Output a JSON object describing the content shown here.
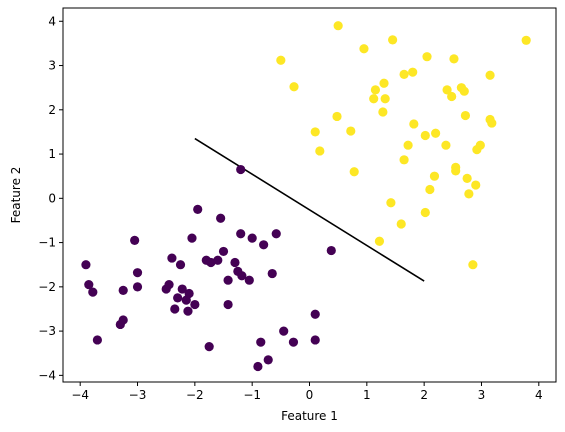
{
  "chart_data": {
    "type": "scatter",
    "xlabel": "Feature 1",
    "ylabel": "Feature 2",
    "xlim": [
      -4.3,
      4.3
    ],
    "ylim": [
      -4.15,
      4.3
    ],
    "x_ticks": [
      -4,
      -3,
      -2,
      -1,
      0,
      1,
      2,
      3,
      4
    ],
    "y_ticks": [
      -4,
      -3,
      -2,
      -1,
      0,
      1,
      2,
      3,
      4
    ],
    "grid": false,
    "colors": {
      "class_0": "#440154",
      "class_1": "#fde725",
      "boundary": "#000000"
    },
    "series": [
      {
        "color": "#440154",
        "points": [
          [
            -1.2,
            0.65
          ],
          [
            -3.9,
            -1.5
          ],
          [
            -3.85,
            -1.95
          ],
          [
            -3.78,
            -2.12
          ],
          [
            -3.7,
            -3.2
          ],
          [
            -3.3,
            -2.85
          ],
          [
            -3.25,
            -2.75
          ],
          [
            -3.25,
            -2.08
          ],
          [
            -3.05,
            -0.95
          ],
          [
            -3.0,
            -1.68
          ],
          [
            -3.0,
            -2.0
          ],
          [
            -2.5,
            -2.05
          ],
          [
            -2.45,
            -1.95
          ],
          [
            -2.4,
            -1.35
          ],
          [
            -2.35,
            -2.5
          ],
          [
            -2.3,
            -2.25
          ],
          [
            -2.25,
            -1.5
          ],
          [
            -2.22,
            -2.05
          ],
          [
            -2.15,
            -2.3
          ],
          [
            -2.12,
            -2.55
          ],
          [
            -2.1,
            -2.15
          ],
          [
            -2.05,
            -0.9
          ],
          [
            -2.0,
            -2.4
          ],
          [
            -1.95,
            -0.25
          ],
          [
            -1.8,
            -1.4
          ],
          [
            -1.75,
            -3.35
          ],
          [
            -1.72,
            -1.45
          ],
          [
            -1.6,
            -1.4
          ],
          [
            -1.55,
            -0.45
          ],
          [
            -1.5,
            -1.2
          ],
          [
            -1.42,
            -1.85
          ],
          [
            -1.42,
            -2.4
          ],
          [
            -1.3,
            -1.45
          ],
          [
            -1.25,
            -1.65
          ],
          [
            -1.2,
            -0.8
          ],
          [
            -1.18,
            -1.75
          ],
          [
            -1.05,
            -1.85
          ],
          [
            -1.0,
            -0.9
          ],
          [
            -0.9,
            -3.8
          ],
          [
            -0.85,
            -3.25
          ],
          [
            -0.8,
            -1.05
          ],
          [
            -0.72,
            -3.65
          ],
          [
            -0.65,
            -1.7
          ],
          [
            -0.58,
            -0.8
          ],
          [
            -0.45,
            -3.0
          ],
          [
            -0.28,
            -3.25
          ],
          [
            0.1,
            -2.62
          ],
          [
            0.1,
            -3.2
          ],
          [
            0.38,
            -1.18
          ]
        ]
      },
      {
        "color": "#fde725",
        "points": [
          [
            0.5,
            3.9
          ],
          [
            -0.5,
            3.12
          ],
          [
            -0.27,
            2.52
          ],
          [
            0.1,
            1.5
          ],
          [
            0.18,
            1.07
          ],
          [
            0.48,
            1.85
          ],
          [
            0.72,
            1.52
          ],
          [
            0.78,
            0.6
          ],
          [
            0.95,
            3.38
          ],
          [
            1.12,
            2.25
          ],
          [
            1.15,
            2.45
          ],
          [
            1.22,
            -0.97
          ],
          [
            1.28,
            1.95
          ],
          [
            1.3,
            2.6
          ],
          [
            1.32,
            2.25
          ],
          [
            1.42,
            -0.1
          ],
          [
            1.45,
            3.58
          ],
          [
            1.6,
            -0.58
          ],
          [
            1.65,
            2.8
          ],
          [
            1.65,
            0.87
          ],
          [
            1.72,
            1.2
          ],
          [
            1.8,
            2.85
          ],
          [
            1.82,
            1.68
          ],
          [
            2.02,
            -0.32
          ],
          [
            2.02,
            1.42
          ],
          [
            2.05,
            3.2
          ],
          [
            2.1,
            0.2
          ],
          [
            2.18,
            0.5
          ],
          [
            2.2,
            1.47
          ],
          [
            2.38,
            1.2
          ],
          [
            2.4,
            2.45
          ],
          [
            2.48,
            2.3
          ],
          [
            2.52,
            3.15
          ],
          [
            2.55,
            0.7
          ],
          [
            2.55,
            0.62
          ],
          [
            2.65,
            2.5
          ],
          [
            2.7,
            2.42
          ],
          [
            2.72,
            1.87
          ],
          [
            2.75,
            0.45
          ],
          [
            2.78,
            0.1
          ],
          [
            2.85,
            -1.5
          ],
          [
            2.9,
            0.3
          ],
          [
            2.92,
            1.1
          ],
          [
            2.98,
            1.2
          ],
          [
            3.15,
            2.78
          ],
          [
            3.15,
            1.78
          ],
          [
            3.18,
            1.7
          ],
          [
            3.78,
            3.57
          ]
        ]
      }
    ],
    "boundary_line": {
      "x": [
        -2.0,
        2.0
      ],
      "y": [
        1.35,
        -1.87
      ]
    }
  }
}
